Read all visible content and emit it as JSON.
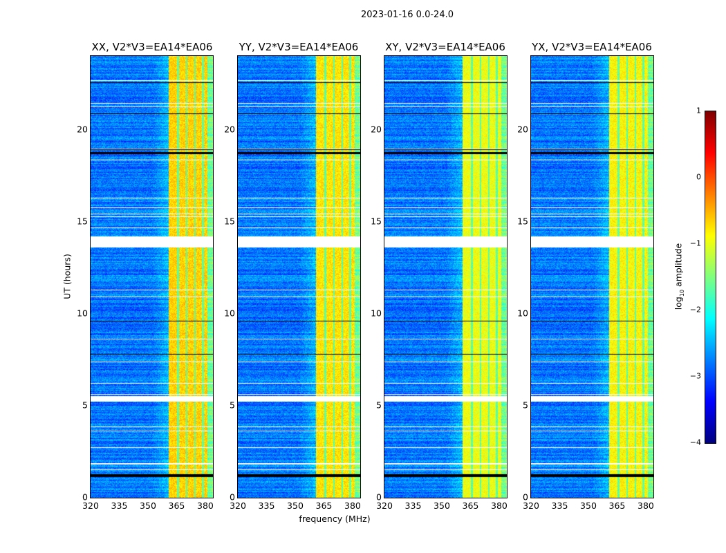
{
  "chart_data": {
    "type": "heatmap",
    "suptitle": "2023-01-16 0.0-24.0",
    "xlabel": "frequency (MHz)",
    "ylabel": "UT (hours)",
    "xlim": [
      320,
      384
    ],
    "ylim": [
      0,
      24
    ],
    "xticks": [
      "320",
      "335",
      "350",
      "365",
      "380"
    ],
    "xtick_values": [
      320,
      335,
      350,
      365,
      380
    ],
    "yticks": [
      "0",
      "5",
      "10",
      "15",
      "20"
    ],
    "ytick_values": [
      0,
      5,
      10,
      15,
      20
    ],
    "panels": [
      {
        "title": "XX, V2*V3=EA14*EA06",
        "band_level": -0.7
      },
      {
        "title": "YY, V2*V3=EA14*EA06",
        "band_level": -0.8
      },
      {
        "title": "XY, V2*V3=EA14*EA06",
        "band_level": -1.0
      },
      {
        "title": "YX, V2*V3=EA14*EA06",
        "band_level": -0.9
      }
    ],
    "background_level": -2.8,
    "rfi_band_mhz": [
      360.5,
      381
    ],
    "flagged_hours": [
      [
        5.25,
        5.55
      ],
      [
        13.6,
        14.2
      ]
    ],
    "dropout_hours": [
      [
        1.15,
        1.3
      ],
      [
        18.7,
        18.78
      ],
      [
        18.92,
        18.98
      ],
      [
        20.85,
        20.9
      ],
      [
        22.55,
        22.6
      ],
      [
        9.6,
        9.63
      ],
      [
        7.78,
        7.83
      ]
    ],
    "colorbar": {
      "label": "log",
      "label_sub": "10",
      "label_rest": " amplitude",
      "range": [
        -4,
        1
      ],
      "ticks": [
        "1",
        "0",
        "−1",
        "−2",
        "−3",
        "−4"
      ],
      "tick_values": [
        1,
        0,
        -1,
        -2,
        -3,
        -4
      ],
      "colormap": "jet"
    }
  }
}
